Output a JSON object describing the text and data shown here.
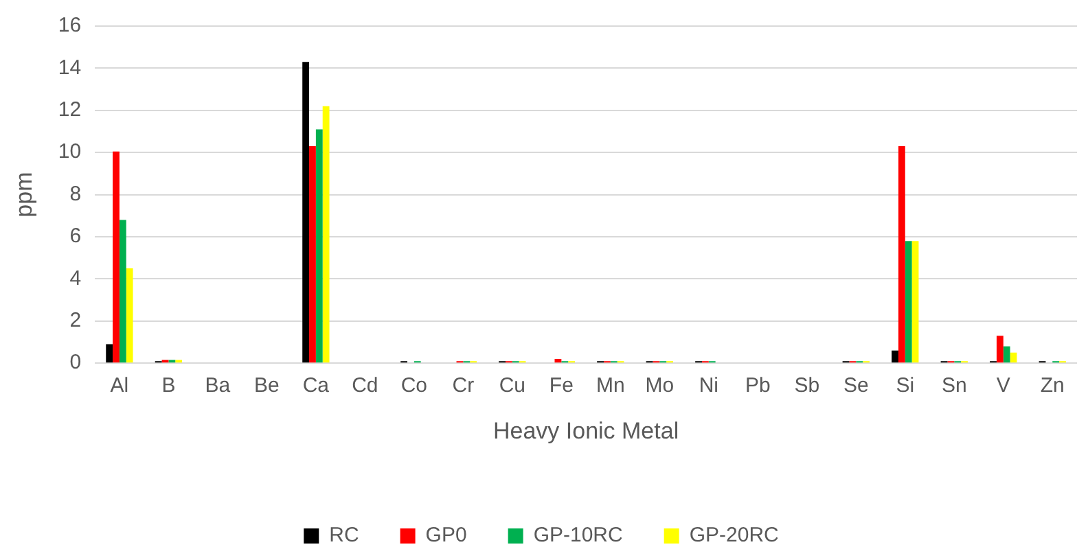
{
  "chart_data": {
    "type": "bar",
    "xlabel": "Heavy Ionic Metal",
    "ylabel": "ppm",
    "categories": [
      "Al",
      "B",
      "Ba",
      "Be",
      "Ca",
      "Cd",
      "Co",
      "Cr",
      "Cu",
      "Fe",
      "Mn",
      "Mo",
      "Ni",
      "Pb",
      "Sb",
      "Se",
      "Si",
      "Sn",
      "V",
      "Zn"
    ],
    "series": [
      {
        "name": "RC",
        "color": "#000000",
        "values": [
          0.9,
          0.1,
          0,
          0,
          14.3,
          0,
          0.1,
          0,
          0.1,
          0,
          0.1,
          0.1,
          0.1,
          0,
          0,
          0.1,
          0.6,
          0.1,
          0.1,
          0.1
        ]
      },
      {
        "name": "GP0",
        "color": "#ff0000",
        "values": [
          10.05,
          0.15,
          0,
          0,
          10.3,
          0,
          0,
          0.1,
          0.1,
          0.2,
          0.1,
          0.1,
          0.1,
          0,
          0,
          0.1,
          10.3,
          0.1,
          1.3,
          0
        ]
      },
      {
        "name": "GP-10RC",
        "color": "#00b050",
        "values": [
          6.8,
          0.15,
          0,
          0,
          11.1,
          0,
          0.1,
          0.1,
          0.1,
          0.1,
          0.1,
          0.1,
          0.1,
          0,
          0,
          0.1,
          5.8,
          0.1,
          0.8,
          0.1
        ]
      },
      {
        "name": "GP-20RC",
        "color": "#ffff00",
        "values": [
          4.5,
          0.15,
          0,
          0,
          12.2,
          0,
          0,
          0.1,
          0.1,
          0.1,
          0.1,
          0.1,
          0,
          0,
          0,
          0.1,
          5.8,
          0.1,
          0.5,
          0.1
        ]
      }
    ],
    "ylim": [
      0,
      16
    ],
    "yticks": [
      0,
      2,
      4,
      6,
      8,
      10,
      12,
      14,
      16
    ],
    "grid": "y",
    "legend": "bottom"
  }
}
